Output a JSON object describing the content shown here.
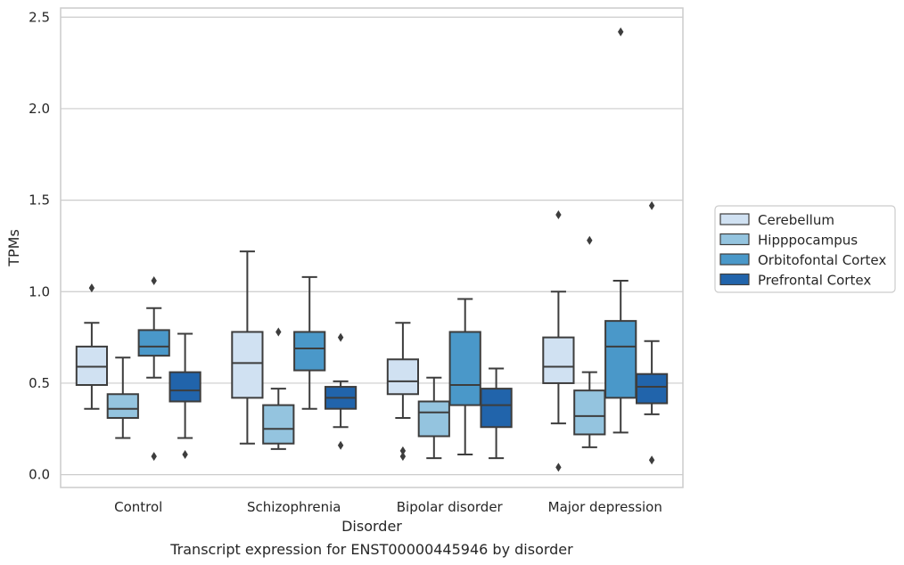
{
  "chart_data": {
    "type": "box",
    "title": "",
    "caption": "Transcript expression for ENST00000445946 by disorder",
    "xlabel": "Disorder",
    "ylabel": "TPMs",
    "ylim": [
      -0.07,
      2.55
    ],
    "yticks": [
      "0.0",
      "0.5",
      "1.0",
      "1.5",
      "2.0",
      "2.5"
    ],
    "ytick_values": [
      0,
      0.5,
      1.0,
      1.5,
      2.0,
      2.5
    ],
    "grid": "horizontal",
    "legend_position": "right",
    "categories": [
      "Control",
      "Schizophrenia",
      "Bipolar disorder",
      "Major depression"
    ],
    "series": [
      {
        "name": "Cerebellum",
        "color": "#d0e1f2",
        "boxes": [
          {
            "whislo": 0.36,
            "q1": 0.49,
            "med": 0.59,
            "q3": 0.7,
            "whishi": 0.83,
            "fliers": [
              1.02
            ]
          },
          {
            "whislo": 0.17,
            "q1": 0.42,
            "med": 0.61,
            "q3": 0.78,
            "whishi": 1.22,
            "fliers": []
          },
          {
            "whislo": 0.31,
            "q1": 0.44,
            "med": 0.51,
            "q3": 0.63,
            "whishi": 0.83,
            "fliers": [
              0.1,
              0.13
            ]
          },
          {
            "whislo": 0.28,
            "q1": 0.5,
            "med": 0.59,
            "q3": 0.75,
            "whishi": 1.0,
            "fliers": [
              1.42,
              0.04
            ]
          }
        ]
      },
      {
        "name": "Hipppocampus",
        "color": "#94c4df",
        "boxes": [
          {
            "whislo": 0.2,
            "q1": 0.31,
            "med": 0.36,
            "q3": 0.44,
            "whishi": 0.64,
            "fliers": []
          },
          {
            "whislo": 0.14,
            "q1": 0.17,
            "med": 0.25,
            "q3": 0.38,
            "whishi": 0.47,
            "fliers": [
              0.78
            ]
          },
          {
            "whislo": 0.09,
            "q1": 0.21,
            "med": 0.34,
            "q3": 0.4,
            "whishi": 0.53,
            "fliers": []
          },
          {
            "whislo": 0.15,
            "q1": 0.22,
            "med": 0.32,
            "q3": 0.46,
            "whishi": 0.56,
            "fliers": [
              1.28
            ]
          }
        ]
      },
      {
        "name": "Orbitofontal Cortex",
        "color": "#4a98c9",
        "boxes": [
          {
            "whislo": 0.53,
            "q1": 0.65,
            "med": 0.7,
            "q3": 0.79,
            "whishi": 0.91,
            "fliers": [
              1.06,
              0.1
            ]
          },
          {
            "whislo": 0.36,
            "q1": 0.57,
            "med": 0.69,
            "q3": 0.78,
            "whishi": 1.08,
            "fliers": []
          },
          {
            "whislo": 0.11,
            "q1": 0.38,
            "med": 0.49,
            "q3": 0.78,
            "whishi": 0.96,
            "fliers": []
          },
          {
            "whislo": 0.23,
            "q1": 0.42,
            "med": 0.7,
            "q3": 0.84,
            "whishi": 1.06,
            "fliers": [
              2.42
            ]
          }
        ]
      },
      {
        "name": "Prefrontal Cortex",
        "color": "#2164ab",
        "boxes": [
          {
            "whislo": 0.2,
            "q1": 0.4,
            "med": 0.46,
            "q3": 0.56,
            "whishi": 0.77,
            "fliers": [
              0.11
            ]
          },
          {
            "whislo": 0.26,
            "q1": 0.36,
            "med": 0.42,
            "q3": 0.48,
            "whishi": 0.51,
            "fliers": [
              0.75,
              0.16
            ]
          },
          {
            "whislo": 0.09,
            "q1": 0.26,
            "med": 0.38,
            "q3": 0.47,
            "whishi": 0.58,
            "fliers": []
          },
          {
            "whislo": 0.33,
            "q1": 0.39,
            "med": 0.48,
            "q3": 0.55,
            "whishi": 0.73,
            "fliers": [
              1.47,
              0.08
            ]
          }
        ]
      }
    ]
  }
}
